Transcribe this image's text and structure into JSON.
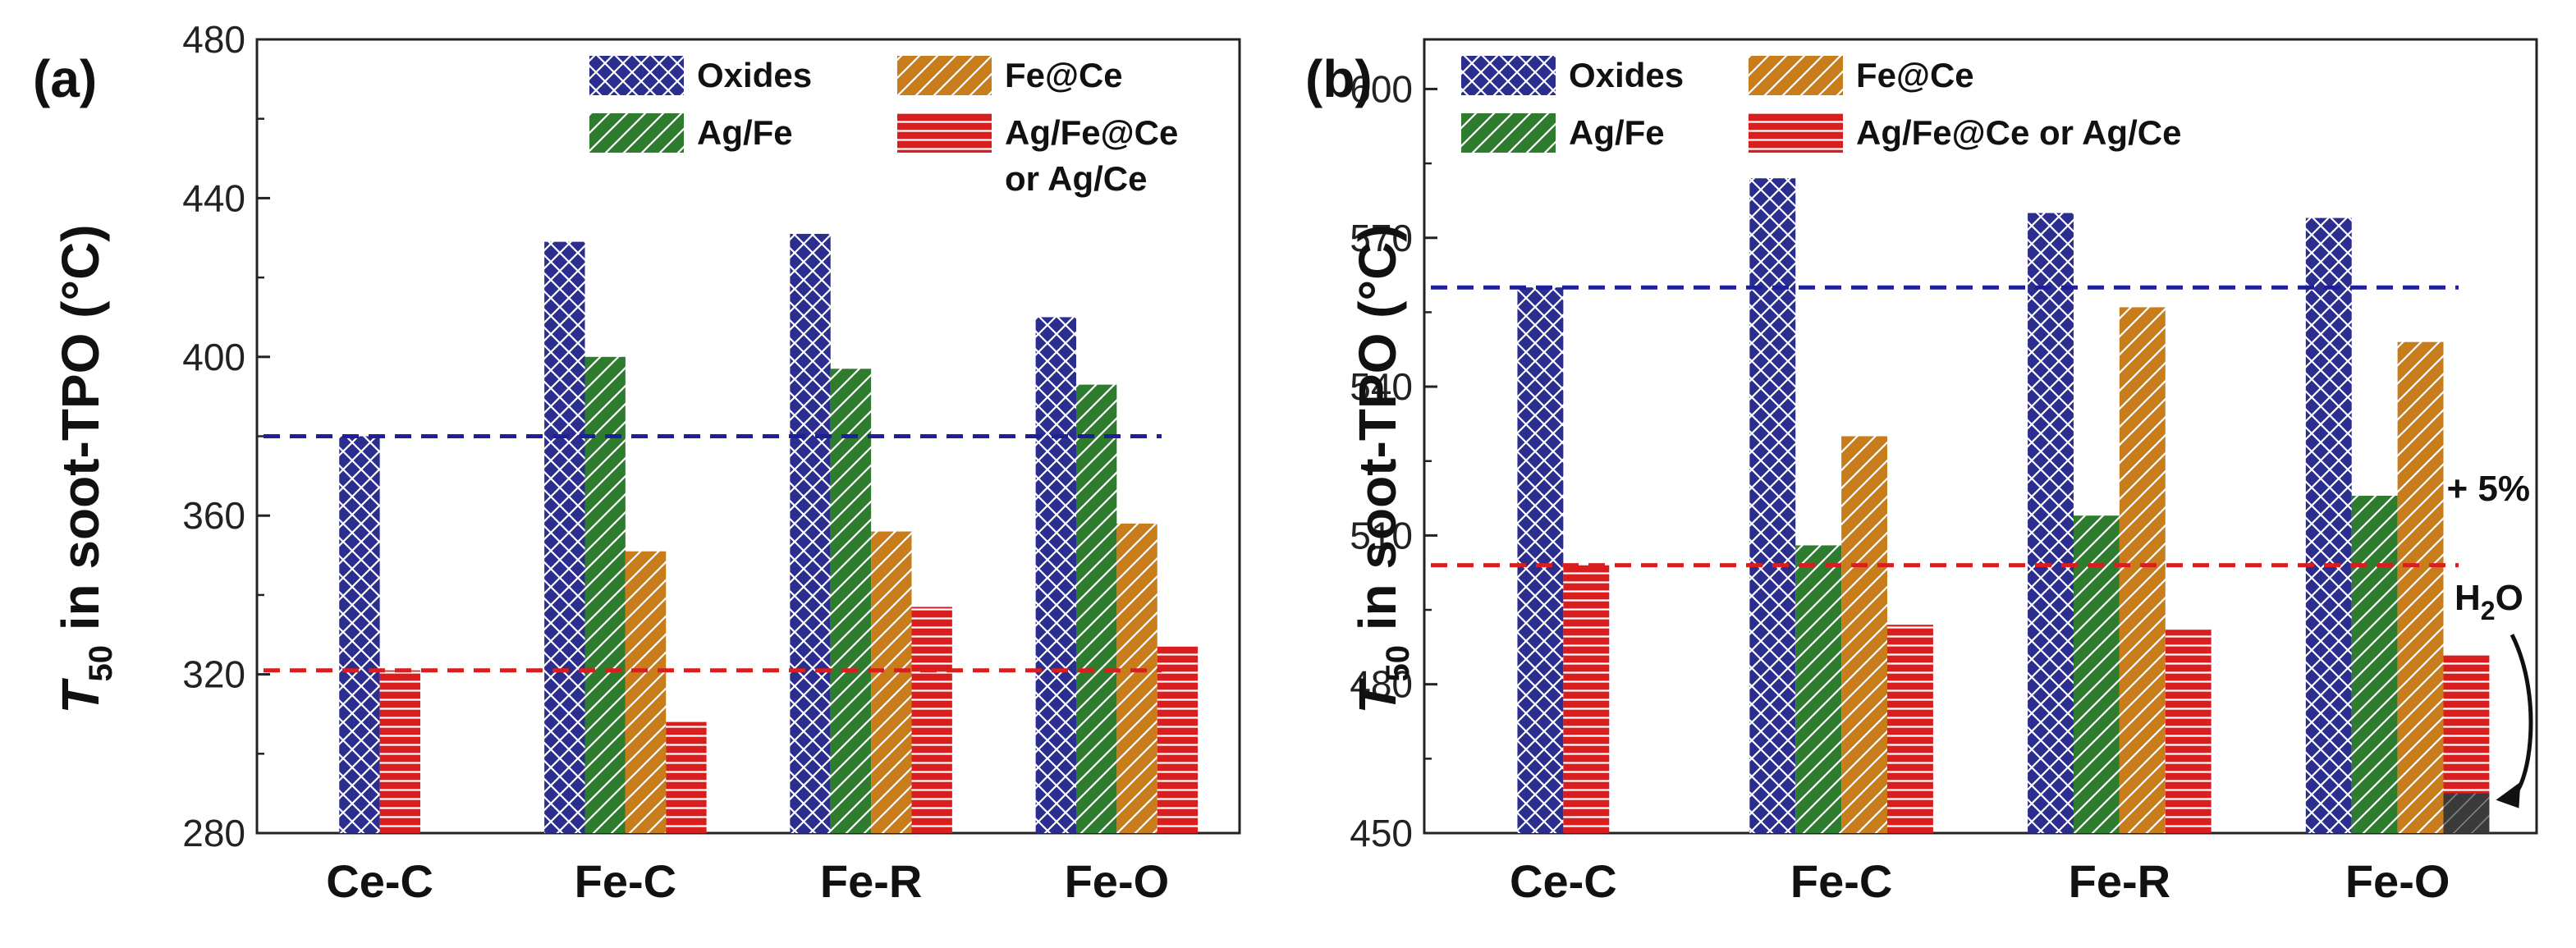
{
  "chart_data": [
    {
      "type": "bar",
      "panel": "(a)",
      "categories": [
        "Ce-C",
        "Fe-C",
        "Fe-R",
        "Fe-O"
      ],
      "ylabel_main": "T",
      "ylabel_sub": "50",
      "ylabel_rest": " in soot-TPO  (°C)",
      "ylim": [
        280,
        480
      ],
      "yticks": [
        280,
        320,
        360,
        400,
        440,
        480
      ],
      "series": [
        {
          "name": "Oxides",
          "color": "#2b2e8f",
          "pattern": "crosshatch",
          "values": [
            380,
            429,
            431,
            410
          ]
        },
        {
          "name": "Ag/Fe",
          "color": "#2e7d2e",
          "pattern": "diag-left",
          "values": [
            null,
            400,
            397,
            393
          ]
        },
        {
          "name": "Fe@Ce",
          "color": "#c97d1a",
          "pattern": "diag-right",
          "values": [
            null,
            351,
            356,
            358
          ]
        },
        {
          "name": "Ag/Fe@Ce or Ag/Ce",
          "color": "#d81e1e",
          "pattern": "horizontal",
          "values": [
            321,
            308,
            337,
            327
          ]
        }
      ],
      "legend": [
        {
          "label": "Oxides",
          "series": 0
        },
        {
          "label": "Fe@Ce",
          "series": 2
        },
        {
          "label": "Ag/Fe",
          "series": 1
        },
        {
          "label": "Ag/Fe@Ce",
          "series": 3,
          "second_line": "or Ag/Ce"
        }
      ],
      "reference_lines": [
        {
          "value": 380,
          "color": "#1f1f9a"
        },
        {
          "value": 321,
          "color": "#d81e1e"
        }
      ]
    },
    {
      "type": "bar",
      "panel": "(b)",
      "categories": [
        "Ce-C",
        "Fe-C",
        "Fe-R",
        "Fe-O"
      ],
      "ylabel_main": "T",
      "ylabel_sub": "50",
      "ylabel_rest": " in soot-TPO  (°C)",
      "ylim": [
        450,
        610
      ],
      "yticks": [
        450,
        480,
        510,
        540,
        570,
        600
      ],
      "series": [
        {
          "name": "Oxides",
          "color": "#2b2e8f",
          "pattern": "crosshatch",
          "values": [
            560,
            582,
            575,
            574
          ]
        },
        {
          "name": "Ag/Fe",
          "color": "#2e7d2e",
          "pattern": "diag-left",
          "values": [
            null,
            508,
            514,
            518
          ]
        },
        {
          "name": "Fe@Ce",
          "color": "#c97d1a",
          "pattern": "diag-right",
          "values": [
            null,
            530,
            556,
            549
          ]
        },
        {
          "name": "Ag/Fe@Ce or Ag/Ce",
          "color": "#d81e1e",
          "pattern": "horizontal",
          "values": [
            504,
            492,
            491,
            486
          ]
        }
      ],
      "legend": [
        {
          "label": "Oxides",
          "series": 0
        },
        {
          "label": "Fe@Ce",
          "series": 2
        },
        {
          "label": "Ag/Fe",
          "series": 1
        },
        {
          "label": "Ag/Fe@Ce or Ag/Ce",
          "series": 3
        }
      ],
      "reference_lines": [
        {
          "value": 560,
          "color": "#1f1f9a"
        },
        {
          "value": 504,
          "color": "#d81e1e"
        }
      ],
      "annotation": {
        "line1": "+ 5%",
        "line2_main": "H",
        "line2_sub": "2",
        "line2_rest": "O",
        "with_water_value": 458,
        "with_water_color": "#3a3a3a"
      }
    }
  ]
}
